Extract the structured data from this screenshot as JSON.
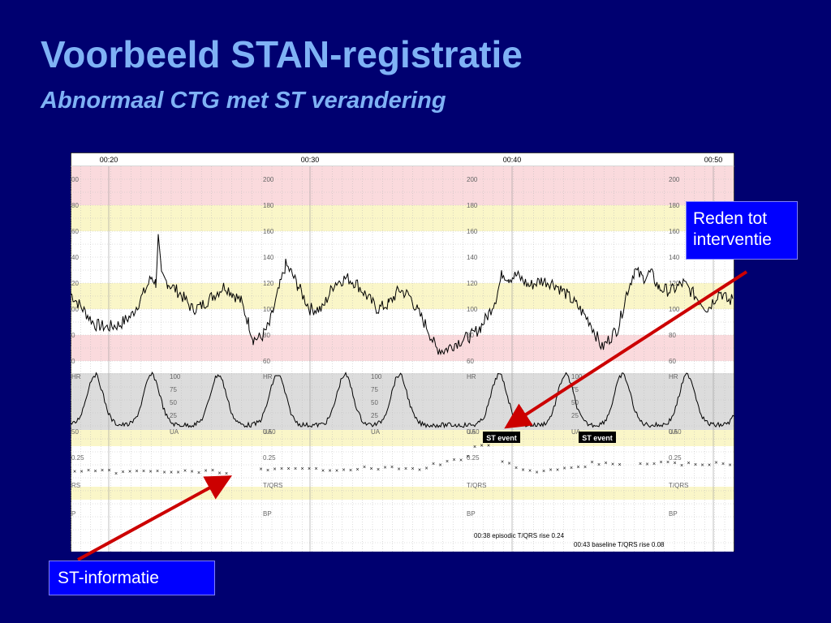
{
  "slide": {
    "title": "Voorbeeld STAN-registratie",
    "subtitle": "Abnormaal CTG met ST verandering",
    "background": "#000070",
    "title_color": "#7FB2F5"
  },
  "chart": {
    "time_labels": [
      "00:20",
      "00:30",
      "00:40",
      "00:50"
    ],
    "fhr_scale": [
      "200",
      "180",
      "160",
      "140",
      "120",
      "100",
      "80",
      "60"
    ],
    "fhr_edge_scale": [
      "00",
      "80",
      "60",
      "40",
      "20",
      "00",
      "0",
      "0"
    ],
    "ua_scale": [
      "HR",
      "100",
      "75",
      "50",
      "25",
      "UA"
    ],
    "ua_labels": {
      "hr": "HR",
      "ua": "UA"
    },
    "tqrs_scale": [
      "0.50",
      "0.25",
      "T/QRS"
    ],
    "tqrs_edge": [
      "50",
      "0.25",
      "RS"
    ],
    "bp_label": "BP",
    "bp_edge": "P",
    "st_event_label": "ST event",
    "notes": [
      "00:38 episodic T/QRS rise 0.24",
      "00:43 baseline T/QRS rise 0.08"
    ]
  },
  "callouts": {
    "reden": "Reden tot interventie",
    "st_informatie": "ST-informatie"
  },
  "colors": {
    "callout_bg": "#0000FF",
    "arrow": "#CC0000",
    "band_pink": "#FADADD",
    "band_yellow": "#FAF6C8",
    "band_gray": "#DCDCDC"
  }
}
